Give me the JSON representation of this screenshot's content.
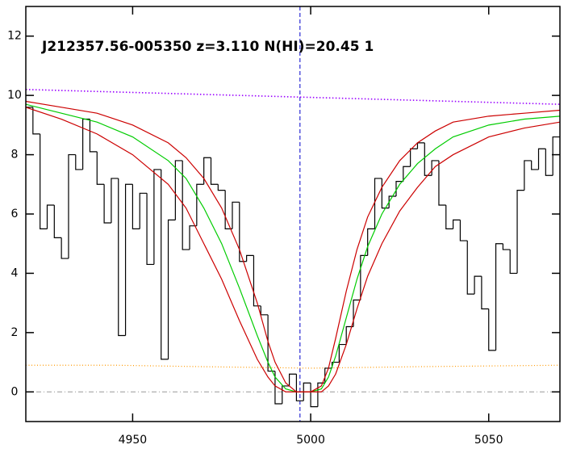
{
  "chart_data": {
    "type": "spectrum",
    "annotation": "J212357.56-005350 z=3.110 N(HI)=20.45 1",
    "xlim": [
      4920,
      5070
    ],
    "xticks": [
      4950,
      5000,
      5050
    ],
    "ylim": [
      -1,
      13
    ],
    "yticks": [
      0,
      2,
      4,
      6,
      8,
      10,
      12
    ],
    "flux": {
      "color": "#000000",
      "x": [
        4921,
        4923,
        4925,
        4927,
        4929,
        4931,
        4933,
        4935,
        4937,
        4939,
        4941,
        4943,
        4945,
        4947,
        4949,
        4951,
        4953,
        4955,
        4957,
        4959,
        4961,
        4963,
        4965,
        4967,
        4969,
        4971,
        4973,
        4975,
        4977,
        4979,
        4981,
        4983,
        4985,
        4987,
        4989,
        4991,
        4993,
        4995,
        4997,
        4999,
        5001,
        5003,
        5005,
        5007,
        5009,
        5011,
        5013,
        5015,
        5017,
        5019,
        5021,
        5023,
        5025,
        5027,
        5029,
        5031,
        5033,
        5035,
        5037,
        5039,
        5041,
        5043,
        5045,
        5047,
        5049,
        5051,
        5053,
        5055,
        5057,
        5059,
        5061,
        5063,
        5065,
        5067,
        5069
      ],
      "values": [
        9.6,
        8.7,
        5.5,
        6.3,
        5.2,
        4.5,
        8.0,
        7.5,
        9.2,
        8.1,
        7.0,
        5.7,
        7.2,
        1.9,
        7.0,
        5.5,
        6.7,
        4.3,
        7.5,
        1.1,
        5.8,
        7.8,
        4.8,
        5.6,
        7.0,
        7.9,
        7.0,
        6.8,
        5.5,
        6.4,
        4.4,
        4.6,
        2.9,
        2.6,
        0.7,
        -0.4,
        0.2,
        0.6,
        -0.3,
        0.3,
        -0.5,
        0.3,
        0.8,
        1.0,
        1.6,
        2.2,
        3.1,
        4.6,
        5.5,
        7.2,
        6.2,
        6.6,
        7.1,
        7.6,
        8.2,
        8.4,
        7.3,
        7.8,
        6.3,
        5.5,
        5.8,
        5.1,
        3.3,
        3.9,
        2.8,
        1.4,
        5.0,
        4.8,
        4.0,
        6.8,
        7.8,
        7.5,
        8.2,
        7.3,
        8.6
      ]
    },
    "models": [
      {
        "color": "#00cc00",
        "x": [
          4920,
          4930,
          4940,
          4950,
          4960,
          4965,
          4970,
          4975,
          4980,
          4985,
          4988,
          4990,
          4993,
          4996,
          5000,
          5003,
          5005,
          5007,
          5010,
          5013,
          5016,
          5020,
          5025,
          5030,
          5035,
          5040,
          5050,
          5060,
          5070
        ],
        "values": [
          9.7,
          9.4,
          9.1,
          8.6,
          7.8,
          7.2,
          6.2,
          5.0,
          3.5,
          1.9,
          1.0,
          0.5,
          0.1,
          0,
          0,
          0.1,
          0.5,
          1.2,
          2.5,
          3.8,
          4.9,
          6.0,
          7.0,
          7.7,
          8.2,
          8.6,
          9.0,
          9.2,
          9.3
        ]
      },
      {
        "color": "#cc0000",
        "x": [
          4920,
          4930,
          4940,
          4950,
          4960,
          4965,
          4970,
          4975,
          4980,
          4985,
          4988,
          4990,
          4993,
          4996,
          5000,
          5003,
          5005,
          5007,
          5010,
          5013,
          5016,
          5020,
          5025,
          5030,
          5035,
          5040,
          5050,
          5060,
          5070
        ],
        "values": [
          9.8,
          9.6,
          9.4,
          9.0,
          8.4,
          7.9,
          7.2,
          6.2,
          4.8,
          3.0,
          1.7,
          1.0,
          0.3,
          0,
          0,
          0.2,
          0.8,
          1.8,
          3.4,
          4.8,
          5.9,
          6.9,
          7.8,
          8.4,
          8.8,
          9.1,
          9.3,
          9.4,
          9.5
        ]
      },
      {
        "color": "#cc0000",
        "x": [
          4920,
          4930,
          4940,
          4950,
          4960,
          4965,
          4970,
          4975,
          4980,
          4985,
          4988,
          4990,
          4993,
          4996,
          5000,
          5003,
          5005,
          5007,
          5010,
          5013,
          5016,
          5020,
          5025,
          5030,
          5035,
          5040,
          5050,
          5060,
          5070
        ],
        "values": [
          9.6,
          9.2,
          8.7,
          8.0,
          7.0,
          6.2,
          5.0,
          3.8,
          2.4,
          1.1,
          0.5,
          0.2,
          0,
          0,
          0,
          0,
          0.2,
          0.6,
          1.6,
          2.8,
          3.9,
          5.0,
          6.1,
          6.9,
          7.6,
          8.0,
          8.6,
          8.9,
          9.1
        ]
      }
    ],
    "continuum": {
      "color": "#9900ff",
      "x": [
        4920,
        5070
      ],
      "values": [
        10.2,
        9.7
      ]
    },
    "error": {
      "color": "#ff9900",
      "x": [
        4920,
        4945,
        4970,
        5000,
        5030,
        5070
      ],
      "values": [
        0.9,
        0.9,
        0.85,
        0.8,
        0.85,
        0.9
      ]
    },
    "zero_line": 0,
    "center_line": 4997
  }
}
